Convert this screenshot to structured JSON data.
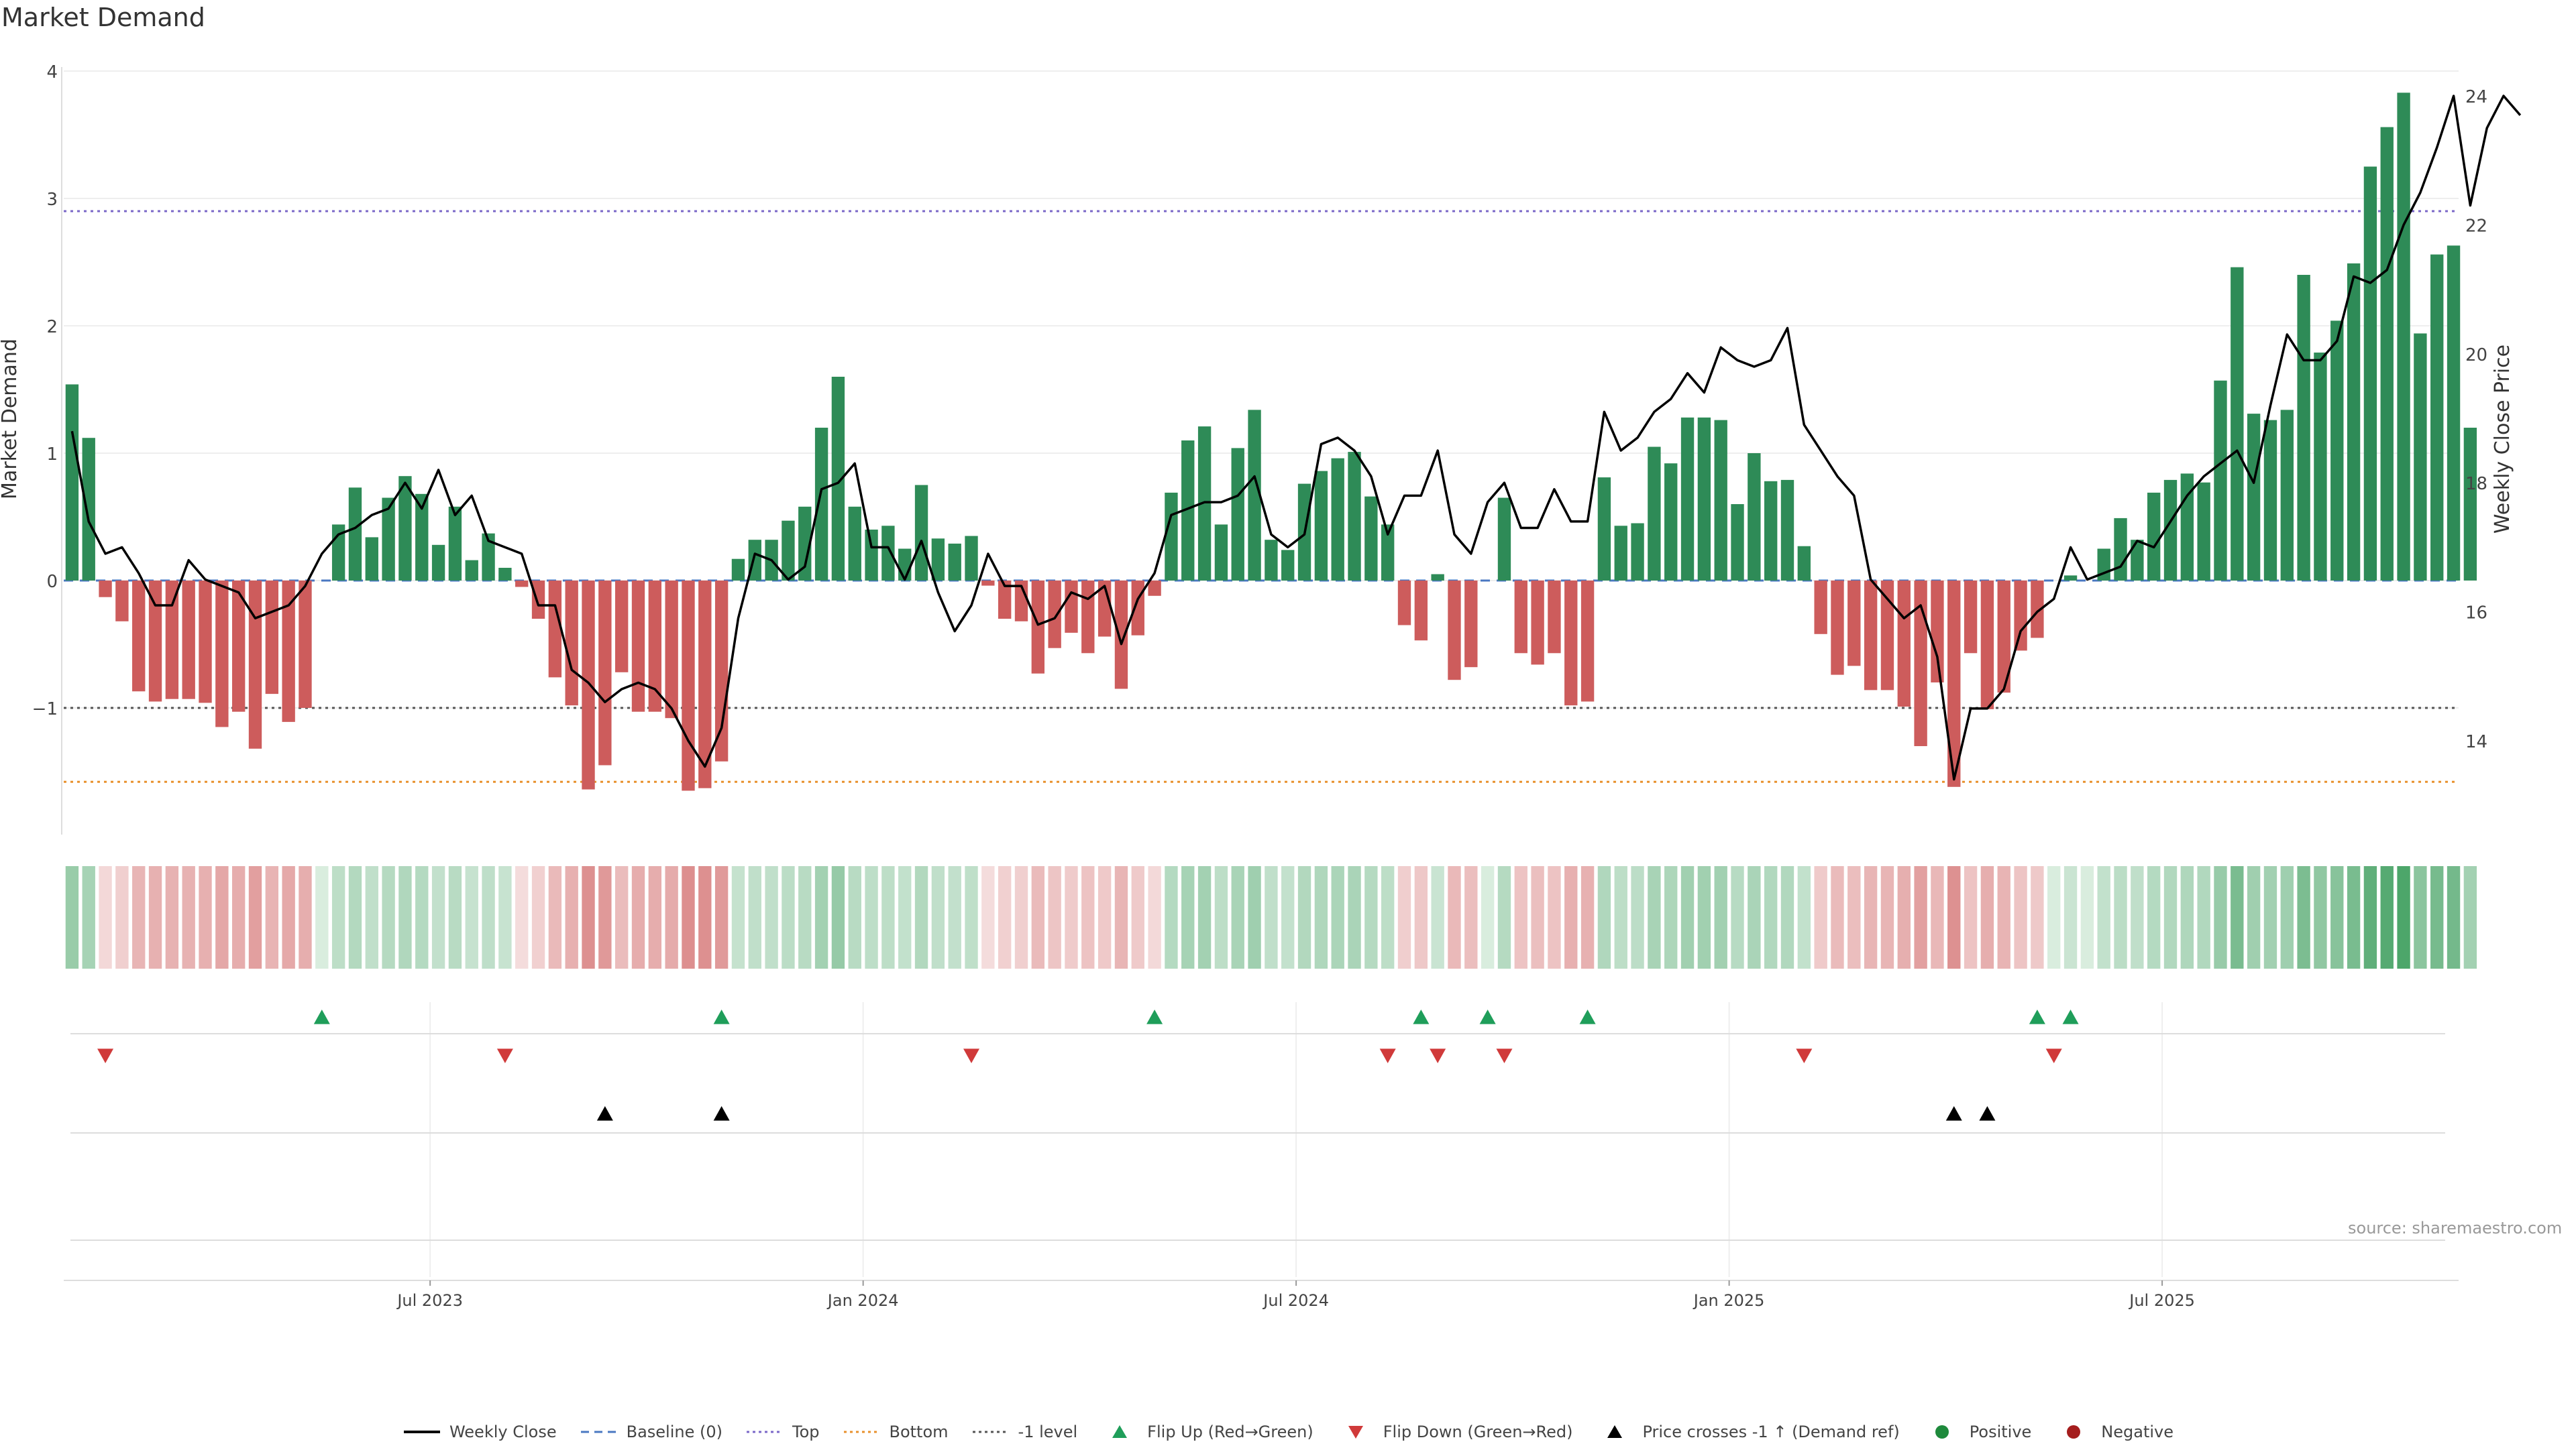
{
  "chart_data": {
    "type": "bar",
    "title": "Market Demand",
    "ylabel": "Market Demand",
    "y2label": "Weekly Close Price",
    "ylim": [
      -2.0,
      4.0
    ],
    "y2lim": [
      12.5,
      24.5
    ],
    "yticks": [
      {
        "v": 4,
        "label": "4"
      },
      {
        "v": 3,
        "label": "3"
      },
      {
        "v": 2,
        "label": "2"
      },
      {
        "v": 1,
        "label": "1"
      },
      {
        "v": 0,
        "label": "0"
      },
      {
        "v": -1,
        "label": "−1"
      }
    ],
    "y2ticks": [
      {
        "v": 24,
        "label": "24"
      },
      {
        "v": 22,
        "label": "22"
      },
      {
        "v": 20,
        "label": "20"
      },
      {
        "v": 18,
        "label": "18"
      },
      {
        "v": 16,
        "label": "16"
      },
      {
        "v": 14,
        "label": "14"
      }
    ],
    "xticks": [
      {
        "i": 21.5,
        "label": "Jul 2023"
      },
      {
        "i": 47.5,
        "label": "Jan 2024"
      },
      {
        "i": 73.5,
        "label": "Jul 2024"
      },
      {
        "i": 99.5,
        "label": "Jan 2025"
      },
      {
        "i": 125.5,
        "label": "Jul 2025"
      }
    ],
    "x_range": [
      -0.5,
      143.3
    ],
    "levels": {
      "top": 2.9,
      "bottom": -1.58,
      "minus_one": -1.0,
      "baseline": 0
    },
    "demand": [
      1.54,
      1.12,
      -0.13,
      -0.32,
      -0.87,
      -0.95,
      -0.93,
      -0.93,
      -0.96,
      -1.15,
      -1.03,
      -1.32,
      -0.89,
      -1.11,
      -1.0,
      0.0,
      0.44,
      0.73,
      0.34,
      0.65,
      0.82,
      0.68,
      0.28,
      0.58,
      0.16,
      0.37,
      0.1,
      -0.05,
      -0.3,
      -0.76,
      -0.98,
      -1.64,
      -1.45,
      -0.72,
      -1.03,
      -1.03,
      -1.08,
      -1.65,
      -1.63,
      -1.42,
      0.17,
      0.32,
      0.32,
      0.47,
      0.58,
      1.2,
      1.6,
      0.58,
      0.4,
      0.43,
      0.25,
      0.75,
      0.33,
      0.29,
      0.35,
      -0.04,
      -0.3,
      -0.32,
      -0.73,
      -0.53,
      -0.41,
      -0.57,
      -0.44,
      -0.85,
      -0.43,
      -0.12,
      0.69,
      1.1,
      1.21,
      0.44,
      1.04,
      1.34,
      0.32,
      0.24,
      0.76,
      0.86,
      0.96,
      1.01,
      0.66,
      0.44,
      -0.35,
      -0.47,
      0.05,
      -0.78,
      -0.68,
      0.0,
      0.65,
      -0.57,
      -0.66,
      -0.57,
      -0.98,
      -0.95,
      0.81,
      0.43,
      0.45,
      1.05,
      0.92,
      1.28,
      1.28,
      1.26,
      0.6,
      1.0,
      0.78,
      0.79,
      0.27,
      -0.42,
      -0.74,
      -0.67,
      -0.86,
      -0.86,
      -0.99,
      -1.3,
      -0.8,
      -1.62,
      -0.57,
      -1.01,
      -0.88,
      -0.55,
      -0.45,
      0.0,
      0.04,
      0.0,
      0.25,
      0.49,
      0.32,
      0.69,
      0.79,
      0.84,
      0.77,
      1.57,
      2.46,
      1.31,
      1.26,
      1.34,
      2.4,
      1.79,
      2.04,
      2.49,
      3.25,
      3.56,
      3.83,
      1.94,
      2.56,
      2.63,
      1.2
    ],
    "close": [
      18.8,
      17.4,
      16.9,
      17.0,
      16.6,
      16.1,
      16.1,
      16.8,
      16.5,
      16.4,
      16.3,
      15.9,
      16.0,
      16.1,
      16.4,
      16.9,
      17.2,
      17.3,
      17.5,
      17.6,
      18.0,
      17.6,
      18.2,
      17.5,
      17.8,
      17.1,
      17.0,
      16.9,
      16.1,
      16.1,
      15.1,
      14.9,
      14.6,
      14.8,
      14.9,
      14.8,
      14.5,
      14.0,
      13.6,
      14.2,
      15.9,
      16.9,
      16.8,
      16.5,
      16.7,
      17.9,
      18.0,
      18.3,
      17.0,
      17.0,
      16.5,
      17.1,
      16.3,
      15.7,
      16.1,
      16.9,
      16.4,
      16.4,
      15.8,
      15.9,
      16.3,
      16.2,
      16.4,
      15.5,
      16.2,
      16.6,
      17.5,
      17.6,
      17.7,
      17.7,
      17.8,
      18.1,
      17.2,
      17.0,
      17.2,
      18.6,
      18.7,
      18.5,
      18.1,
      17.2,
      17.8,
      17.8,
      18.5,
      17.2,
      16.9,
      17.7,
      18.0,
      17.3,
      17.3,
      17.9,
      17.4,
      17.4,
      19.1,
      18.5,
      18.7,
      19.1,
      19.3,
      19.7,
      19.4,
      20.1,
      19.9,
      19.8,
      19.9,
      20.4,
      18.9,
      18.5,
      18.1,
      17.8,
      16.5,
      16.2,
      15.9,
      16.1,
      15.3,
      13.4,
      14.5,
      14.5,
      14.8,
      15.7,
      16.0,
      16.2,
      17.0,
      16.5,
      16.6,
      16.7,
      17.1,
      17.0,
      17.4,
      17.8,
      18.1,
      18.3,
      18.5,
      18.0,
      19.2,
      20.3,
      19.9,
      19.9,
      20.2,
      21.2,
      21.1,
      21.3,
      22.0,
      22.5,
      23.2,
      24.0,
      22.3,
      23.5,
      24.0,
      23.7
    ],
    "heat_strip": {
      "label": ""
    },
    "flip_up_idx": [
      15,
      39,
      65,
      81,
      85,
      91,
      118,
      120
    ],
    "flip_down_idx": [
      2,
      26,
      54,
      79,
      82,
      86,
      104,
      119
    ],
    "price_cross_idx": [
      32,
      39,
      113,
      115
    ],
    "legend": [
      {
        "key": "weekly-close",
        "label": "Weekly Close",
        "kind": "solid",
        "color": "#000000"
      },
      {
        "key": "baseline",
        "label": "Baseline (0)",
        "kind": "dash",
        "color": "#4a78c2"
      },
      {
        "key": "top",
        "label": "Top",
        "kind": "dot",
        "color": "#7b68c8"
      },
      {
        "key": "bottom",
        "label": "Bottom",
        "kind": "dot",
        "color": "#e8912d"
      },
      {
        "key": "minus-one",
        "label": "-1 level",
        "kind": "dot",
        "color": "#555555"
      },
      {
        "key": "flip-up",
        "label": "Flip Up (Red→Green)",
        "kind": "tri-up",
        "color": "#1f9e5a"
      },
      {
        "key": "flip-down",
        "label": "Flip Down (Green→Red)",
        "kind": "tri-down",
        "color": "#d03a3a"
      },
      {
        "key": "price-cross",
        "label": "Price crosses -1 ↑ (Demand ref)",
        "kind": "tri-up",
        "color": "#000000"
      },
      {
        "key": "positive",
        "label": "Positive",
        "kind": "dot-marker",
        "color": "#1e8a3c"
      },
      {
        "key": "negative",
        "label": "Negative",
        "kind": "dot-marker",
        "color": "#a51d1d"
      }
    ],
    "colors": {
      "positive_bar": "#2e8b57",
      "negative_bar": "#cd5c5c",
      "up_marker": "#1f9e5a",
      "down_marker": "#d03a3a",
      "cross_marker": "#000000"
    }
  },
  "source": "source: sharemaestro.com"
}
